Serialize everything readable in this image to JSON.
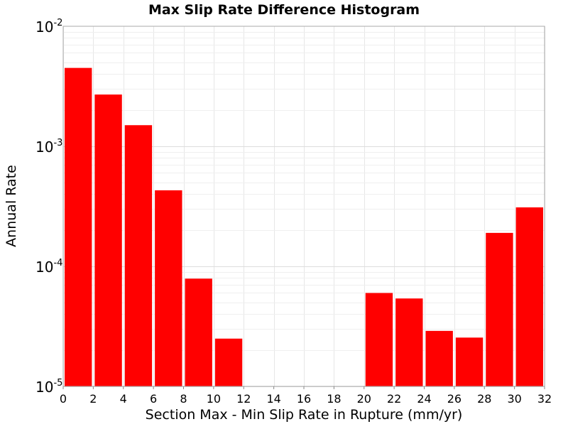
{
  "chart_data": {
    "type": "bar",
    "title": "Max Slip Rate Difference Histogram",
    "xlabel": "Section Max - Min Slip Rate in Rupture (mm/yr)",
    "ylabel": "Annual Rate",
    "xlim": [
      0,
      32
    ],
    "ylim": [
      1e-05,
      0.01
    ],
    "yscale": "log",
    "grid": true,
    "legend": "none",
    "bar_color": "#ff0000",
    "x_ticks": [
      "0",
      "2",
      "4",
      "6",
      "8",
      "10",
      "12",
      "14",
      "16",
      "18",
      "20",
      "22",
      "24",
      "26",
      "28",
      "30",
      "32"
    ],
    "y_ticks": [
      {
        "base": "10",
        "exp": "-5",
        "value": 1e-05
      },
      {
        "base": "10",
        "exp": "-4",
        "value": 0.0001
      },
      {
        "base": "10",
        "exp": "-3",
        "value": 0.001
      },
      {
        "base": "10",
        "exp": "-2",
        "value": 0.01
      }
    ],
    "bins": [
      {
        "x": 1,
        "value": 0.0045
      },
      {
        "x": 3,
        "value": 0.0027
      },
      {
        "x": 5,
        "value": 0.0015
      },
      {
        "x": 7,
        "value": 0.00043
      },
      {
        "x": 9,
        "value": 7.9e-05
      },
      {
        "x": 11,
        "value": 2.5e-05
      },
      {
        "x": 21,
        "value": 6e-05
      },
      {
        "x": 23,
        "value": 5.4e-05
      },
      {
        "x": 25,
        "value": 2.9e-05
      },
      {
        "x": 27,
        "value": 2.55e-05
      },
      {
        "x": 29,
        "value": 0.00019
      },
      {
        "x": 31,
        "value": 0.00031
      }
    ]
  }
}
